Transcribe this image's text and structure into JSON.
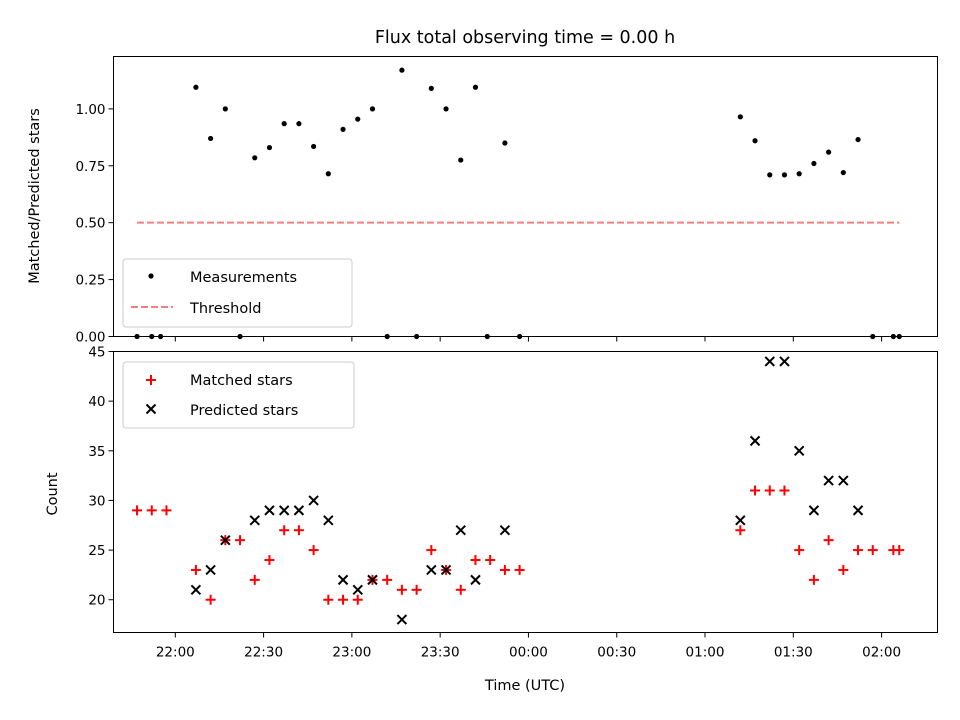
{
  "chart_data": [
    {
      "type": "scatter",
      "title": "Flux total observing time = 0.00 h",
      "xlabel": "",
      "ylabel": "Matched/Predicted stars",
      "ylim": [
        0,
        1.23
      ],
      "xlim": [
        "21:39",
        "02:19"
      ],
      "yticks": [
        0,
        0.25,
        0.5,
        0.75,
        1.0
      ],
      "ytick_labels": [
        "0.00",
        "0.25",
        "0.50",
        "0.75",
        "1.00"
      ],
      "xtick_labels_shown": false,
      "legend": {
        "placement": "bottom-left",
        "entries": [
          "Measurements",
          "Threshold"
        ]
      },
      "series": [
        {
          "name": "Measurements",
          "marker": "dot",
          "color": "#000000",
          "points": [
            [
              "21:47",
              0
            ],
            [
              "21:52",
              0
            ],
            [
              "21:55",
              0
            ],
            [
              "22:07",
              1.095
            ],
            [
              "22:12",
              0.87
            ],
            [
              "22:17",
              1.0
            ],
            [
              "22:22",
              0
            ],
            [
              "22:27",
              0.785
            ],
            [
              "22:32",
              0.83
            ],
            [
              "22:37",
              0.935
            ],
            [
              "22:42",
              0.935
            ],
            [
              "22:47",
              0.835
            ],
            [
              "22:52",
              0.715
            ],
            [
              "22:57",
              0.91
            ],
            [
              "23:02",
              0.955
            ],
            [
              "23:07",
              1.0
            ],
            [
              "23:12",
              0
            ],
            [
              "23:17",
              1.17
            ],
            [
              "23:22",
              0
            ],
            [
              "23:27",
              1.09
            ],
            [
              "23:32",
              1.0
            ],
            [
              "23:37",
              0.775
            ],
            [
              "23:42",
              1.095
            ],
            [
              "23:46",
              0
            ],
            [
              "23:52",
              0.85
            ],
            [
              "23:57",
              0
            ],
            [
              "01:12",
              0.965
            ],
            [
              "01:17",
              0.86
            ],
            [
              "01:22",
              0.71
            ],
            [
              "01:27",
              0.71
            ],
            [
              "01:32",
              0.715
            ],
            [
              "01:37",
              0.76
            ],
            [
              "01:42",
              0.81
            ],
            [
              "01:47",
              0.72
            ],
            [
              "01:52",
              0.865
            ],
            [
              "01:57",
              0
            ],
            [
              "02:04",
              0
            ],
            [
              "02:06",
              0
            ]
          ]
        },
        {
          "name": "Threshold",
          "style": "dashed",
          "color": "#f08080",
          "points": [
            [
              "21:47",
              0.5
            ],
            [
              "02:06",
              0.5
            ]
          ]
        }
      ]
    },
    {
      "type": "scatter",
      "title": "",
      "xlabel": "Time (UTC)",
      "ylabel": "Count",
      "ylim": [
        16.7,
        45
      ],
      "xlim": [
        "21:39",
        "02:19"
      ],
      "yticks": [
        20,
        25,
        30,
        35,
        40,
        45
      ],
      "ytick_labels": [
        "20",
        "25",
        "30",
        "35",
        "40",
        "45"
      ],
      "x_ticks": [
        "22:00",
        "22:30",
        "23:00",
        "23:30",
        "00:00",
        "00:30",
        "01:00",
        "01:30",
        "02:00"
      ],
      "legend": {
        "placement": "top-left",
        "entries": [
          "Matched stars",
          "Predicted stars"
        ]
      },
      "series": [
        {
          "name": "Matched stars",
          "marker": "plus",
          "color": "#ff0000",
          "points": [
            [
              "21:47",
              29
            ],
            [
              "21:52",
              29
            ],
            [
              "21:57",
              29
            ],
            [
              "22:07",
              23
            ],
            [
              "22:12",
              20
            ],
            [
              "22:17",
              26
            ],
            [
              "22:22",
              26
            ],
            [
              "22:27",
              22
            ],
            [
              "22:32",
              24
            ],
            [
              "22:37",
              27
            ],
            [
              "22:42",
              27
            ],
            [
              "22:47",
              25
            ],
            [
              "22:52",
              20
            ],
            [
              "22:57",
              20
            ],
            [
              "23:02",
              20
            ],
            [
              "23:07",
              22
            ],
            [
              "23:12",
              22
            ],
            [
              "23:17",
              21
            ],
            [
              "23:22",
              21
            ],
            [
              "23:27",
              25
            ],
            [
              "23:32",
              23
            ],
            [
              "23:37",
              21
            ],
            [
              "23:42",
              24
            ],
            [
              "23:47",
              24
            ],
            [
              "23:52",
              23
            ],
            [
              "23:57",
              23
            ],
            [
              "01:12",
              27
            ],
            [
              "01:17",
              31
            ],
            [
              "01:22",
              31
            ],
            [
              "01:27",
              31
            ],
            [
              "01:32",
              25
            ],
            [
              "01:37",
              22
            ],
            [
              "01:42",
              26
            ],
            [
              "01:47",
              23
            ],
            [
              "01:52",
              25
            ],
            [
              "01:57",
              25
            ],
            [
              "02:04",
              25
            ],
            [
              "02:06",
              25
            ]
          ]
        },
        {
          "name": "Predicted stars",
          "marker": "x",
          "color": "#000000",
          "points": [
            [
              "22:07",
              21
            ],
            [
              "22:12",
              23
            ],
            [
              "22:17",
              26
            ],
            [
              "22:27",
              28
            ],
            [
              "22:32",
              29
            ],
            [
              "22:37",
              29
            ],
            [
              "22:42",
              29
            ],
            [
              "22:47",
              30
            ],
            [
              "22:52",
              28
            ],
            [
              "22:57",
              22
            ],
            [
              "23:02",
              21
            ],
            [
              "23:07",
              22
            ],
            [
              "23:17",
              18
            ],
            [
              "23:27",
              23
            ],
            [
              "23:32",
              23
            ],
            [
              "23:37",
              27
            ],
            [
              "23:42",
              22
            ],
            [
              "23:52",
              27
            ],
            [
              "01:12",
              28
            ],
            [
              "01:17",
              36
            ],
            [
              "01:22",
              44
            ],
            [
              "01:27",
              44
            ],
            [
              "01:32",
              35
            ],
            [
              "01:37",
              29
            ],
            [
              "01:42",
              32
            ],
            [
              "01:47",
              32
            ],
            [
              "01:52",
              29
            ]
          ]
        }
      ]
    }
  ]
}
